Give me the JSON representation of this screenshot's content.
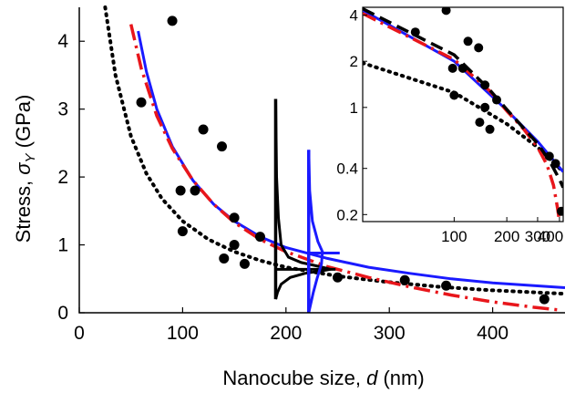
{
  "chart_data": {
    "type": "scatter",
    "title": "",
    "main": {
      "xlabel": {
        "prefix": "Nanocube size, ",
        "symbol": "d",
        "suffix": " (nm)"
      },
      "ylabel": {
        "prefix": "Stress, ",
        "symbol": "σ",
        "subscript": "Y",
        "suffix": " (GPa)"
      },
      "xlim": [
        0,
        470
      ],
      "ylim": [
        0,
        4.5
      ],
      "xticks": [
        0,
        100,
        200,
        300,
        400
      ],
      "yticks": [
        0,
        1,
        2,
        3,
        4
      ],
      "points": [
        {
          "x": 60,
          "y": 3.1
        },
        {
          "x": 90,
          "y": 4.3
        },
        {
          "x": 98,
          "y": 1.8
        },
        {
          "x": 100,
          "y": 1.2
        },
        {
          "x": 112,
          "y": 1.8
        },
        {
          "x": 120,
          "y": 2.7
        },
        {
          "x": 138,
          "y": 2.45
        },
        {
          "x": 140,
          "y": 0.8
        },
        {
          "x": 150,
          "y": 1.4
        },
        {
          "x": 150,
          "y": 1.0
        },
        {
          "x": 160,
          "y": 0.72
        },
        {
          "x": 175,
          "y": 1.12
        },
        {
          "x": 250,
          "y": 0.52
        },
        {
          "x": 315,
          "y": 0.48
        },
        {
          "x": 355,
          "y": 0.4
        },
        {
          "x": 450,
          "y": 0.2
        }
      ],
      "fit_blue_solid": [
        {
          "x": 57,
          "y": 4.15
        },
        {
          "x": 65,
          "y": 3.55
        },
        {
          "x": 75,
          "y": 3.0
        },
        {
          "x": 90,
          "y": 2.45
        },
        {
          "x": 110,
          "y": 1.95
        },
        {
          "x": 130,
          "y": 1.6
        },
        {
          "x": 150,
          "y": 1.35
        },
        {
          "x": 175,
          "y": 1.12
        },
        {
          "x": 200,
          "y": 0.96
        },
        {
          "x": 240,
          "y": 0.8
        },
        {
          "x": 280,
          "y": 0.67
        },
        {
          "x": 320,
          "y": 0.58
        },
        {
          "x": 360,
          "y": 0.5
        },
        {
          "x": 400,
          "y": 0.44
        },
        {
          "x": 440,
          "y": 0.4
        },
        {
          "x": 470,
          "y": 0.37
        }
      ],
      "fit_red_dashdot": [
        {
          "x": 50,
          "y": 4.25
        },
        {
          "x": 60,
          "y": 3.6
        },
        {
          "x": 75,
          "y": 2.9
        },
        {
          "x": 90,
          "y": 2.42
        },
        {
          "x": 110,
          "y": 1.95
        },
        {
          "x": 130,
          "y": 1.6
        },
        {
          "x": 150,
          "y": 1.33
        },
        {
          "x": 175,
          "y": 1.08
        },
        {
          "x": 200,
          "y": 0.9
        },
        {
          "x": 240,
          "y": 0.68
        },
        {
          "x": 280,
          "y": 0.52
        },
        {
          "x": 320,
          "y": 0.38
        },
        {
          "x": 360,
          "y": 0.26
        },
        {
          "x": 400,
          "y": 0.16
        },
        {
          "x": 440,
          "y": 0.08
        },
        {
          "x": 465,
          "y": 0.04
        }
      ],
      "fit_black_dotted": [
        {
          "x": 25,
          "y": 4.5
        },
        {
          "x": 35,
          "y": 3.5
        },
        {
          "x": 50,
          "y": 2.6
        },
        {
          "x": 65,
          "y": 2.05
        },
        {
          "x": 80,
          "y": 1.68
        },
        {
          "x": 100,
          "y": 1.35
        },
        {
          "x": 125,
          "y": 1.08
        },
        {
          "x": 150,
          "y": 0.9
        },
        {
          "x": 175,
          "y": 0.77
        },
        {
          "x": 200,
          "y": 0.67
        },
        {
          "x": 250,
          "y": 0.54
        },
        {
          "x": 300,
          "y": 0.45
        },
        {
          "x": 350,
          "y": 0.38
        },
        {
          "x": 400,
          "y": 0.33
        },
        {
          "x": 470,
          "y": 0.28
        }
      ],
      "distribution_black": {
        "vertical_x": 190,
        "vertical_y": [
          0.2,
          3.15
        ],
        "baseline_y": 0.64,
        "profile": [
          {
            "y": 3.15,
            "dx": 0
          },
          {
            "y": 2.0,
            "dx": 1
          },
          {
            "y": 1.4,
            "dx": 3
          },
          {
            "y": 1.0,
            "dx": 6
          },
          {
            "y": 0.82,
            "dx": 14
          },
          {
            "y": 0.74,
            "dx": 28
          },
          {
            "y": 0.69,
            "dx": 45
          },
          {
            "y": 0.66,
            "dx": 55
          },
          {
            "y": 0.64,
            "dx": 60
          },
          {
            "y": 0.62,
            "dx": 52
          },
          {
            "y": 0.58,
            "dx": 32
          },
          {
            "y": 0.52,
            "dx": 16
          },
          {
            "y": 0.42,
            "dx": 6
          },
          {
            "y": 0.3,
            "dx": 2
          },
          {
            "y": 0.2,
            "dx": 0
          }
        ],
        "whisker_x": [
          190,
          248
        ]
      },
      "distribution_blue": {
        "vertical_x": 222,
        "vertical_y": [
          0,
          2.4
        ],
        "baseline_y": 0.88,
        "profile": [
          {
            "y": 2.4,
            "dx": 0
          },
          {
            "y": 1.8,
            "dx": 1
          },
          {
            "y": 1.35,
            "dx": 4
          },
          {
            "y": 1.05,
            "dx": 10
          },
          {
            "y": 0.9,
            "dx": 15
          },
          {
            "y": 0.72,
            "dx": 14
          },
          {
            "y": 0.5,
            "dx": 9
          },
          {
            "y": 0.3,
            "dx": 5
          },
          {
            "y": 0.12,
            "dx": 2
          },
          {
            "y": 0.0,
            "dx": 0
          }
        ],
        "whisker_x": [
          222,
          252
        ]
      }
    },
    "inset": {
      "scale": "log",
      "xlim": [
        30,
        420
      ],
      "ylim": [
        0.18,
        4.5
      ],
      "xticks": [
        100,
        200,
        300,
        400
      ],
      "yticks": [
        0.2,
        0.4,
        1,
        2,
        4
      ],
      "ytick_labels": [
        "0.2",
        "0.4",
        "1",
        "2",
        "4"
      ],
      "points": [
        {
          "x": 60,
          "y": 3.1
        },
        {
          "x": 90,
          "y": 4.3
        },
        {
          "x": 98,
          "y": 1.8
        },
        {
          "x": 100,
          "y": 1.2
        },
        {
          "x": 112,
          "y": 1.8
        },
        {
          "x": 120,
          "y": 2.7
        },
        {
          "x": 138,
          "y": 2.45
        },
        {
          "x": 140,
          "y": 0.8
        },
        {
          "x": 150,
          "y": 1.4
        },
        {
          "x": 150,
          "y": 1.0
        },
        {
          "x": 160,
          "y": 0.72
        },
        {
          "x": 175,
          "y": 1.12
        },
        {
          "x": 350,
          "y": 0.48
        },
        {
          "x": 380,
          "y": 0.43
        },
        {
          "x": 410,
          "y": 0.21
        }
      ],
      "fit_blue_solid": [
        {
          "x": 30,
          "y": 4.3
        },
        {
          "x": 100,
          "y": 2.0
        },
        {
          "x": 200,
          "y": 0.96
        },
        {
          "x": 300,
          "y": 0.6
        },
        {
          "x": 420,
          "y": 0.38
        }
      ],
      "fit_red_dashdot": [
        {
          "x": 30,
          "y": 4.1
        },
        {
          "x": 100,
          "y": 2.05
        },
        {
          "x": 160,
          "y": 1.28
        },
        {
          "x": 200,
          "y": 0.95
        },
        {
          "x": 250,
          "y": 0.72
        },
        {
          "x": 300,
          "y": 0.55
        },
        {
          "x": 340,
          "y": 0.42
        },
        {
          "x": 370,
          "y": 0.31
        },
        {
          "x": 390,
          "y": 0.22
        },
        {
          "x": 400,
          "y": 0.18
        }
      ],
      "fit_black_dashed": [
        {
          "x": 30,
          "y": 4.4
        },
        {
          "x": 100,
          "y": 2.2
        },
        {
          "x": 160,
          "y": 1.3
        },
        {
          "x": 200,
          "y": 0.97
        },
        {
          "x": 250,
          "y": 0.73
        },
        {
          "x": 300,
          "y": 0.58
        },
        {
          "x": 350,
          "y": 0.45
        },
        {
          "x": 400,
          "y": 0.34
        },
        {
          "x": 420,
          "y": 0.3
        }
      ],
      "fit_black_dotted": [
        {
          "x": 30,
          "y": 1.95
        },
        {
          "x": 100,
          "y": 1.25
        },
        {
          "x": 200,
          "y": 0.78
        },
        {
          "x": 300,
          "y": 0.55
        },
        {
          "x": 420,
          "y": 0.38
        }
      ]
    },
    "grid": false,
    "legend": "none"
  }
}
